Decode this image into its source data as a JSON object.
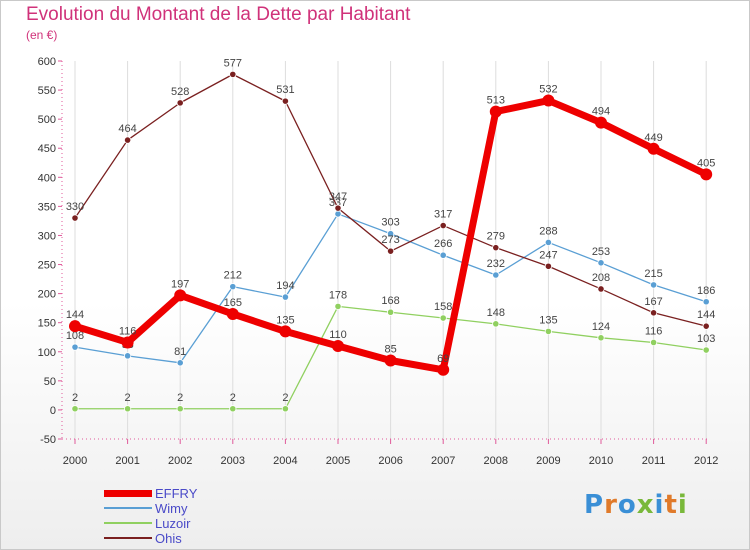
{
  "chart_data": {
    "type": "line",
    "title": "Evolution du Montant de la Dette par Habitant",
    "subtitle": "(en €)",
    "x": [
      "2000",
      "2001",
      "2002",
      "2003",
      "2004",
      "2005",
      "2006",
      "2007",
      "2008",
      "2009",
      "2010",
      "2011",
      "2012"
    ],
    "ylim": [
      -50,
      600
    ],
    "yticks": [
      -50,
      0,
      50,
      100,
      150,
      200,
      250,
      300,
      350,
      400,
      450,
      500,
      550,
      600
    ],
    "grid": "vertical",
    "legend_position": "bottom-left",
    "series": [
      {
        "name": "Wimy",
        "color": "#5a9fd4",
        "values": [
          108,
          93,
          81,
          212,
          194,
          337,
          303,
          266,
          232,
          288,
          253,
          215,
          186
        ],
        "labels": [
          "108",
          "93",
          "81",
          "212",
          "194",
          "337",
          "303",
          "266",
          "232",
          "288",
          "253",
          "215",
          "186"
        ]
      },
      {
        "name": "Luzoir",
        "color": "#90d060",
        "values": [
          2,
          2,
          2,
          2,
          2,
          178,
          168,
          158,
          148,
          135,
          124,
          116,
          103
        ],
        "labels": [
          "2",
          "2",
          "2",
          "2",
          "2",
          "178",
          "168",
          "158",
          "148",
          "135",
          "124",
          "116",
          "103"
        ]
      },
      {
        "name": "Ohis",
        "color": "#7a2020",
        "values": [
          330,
          464,
          528,
          577,
          531,
          347,
          273,
          317,
          279,
          247,
          208,
          167,
          144
        ],
        "labels": [
          "330",
          "464",
          "528",
          "577",
          "531",
          "347",
          "273",
          "317",
          "279",
          "247",
          "208",
          "167",
          "144"
        ]
      },
      {
        "name": "EFFRY",
        "color": "#ee0000",
        "values": [
          144,
          116,
          197,
          165,
          135,
          110,
          85,
          69,
          513,
          532,
          494,
          449,
          405
        ],
        "labels": [
          "144",
          "116",
          "197",
          "165",
          "135",
          "110",
          "85",
          "69",
          "513",
          "532",
          "494",
          "449",
          "405"
        ]
      }
    ],
    "legend_order": [
      "EFFRY",
      "Wimy",
      "Luzoir",
      "Ohis"
    ]
  },
  "logo": [
    "P",
    "r",
    "o",
    "x",
    "i",
    "t",
    "i"
  ]
}
